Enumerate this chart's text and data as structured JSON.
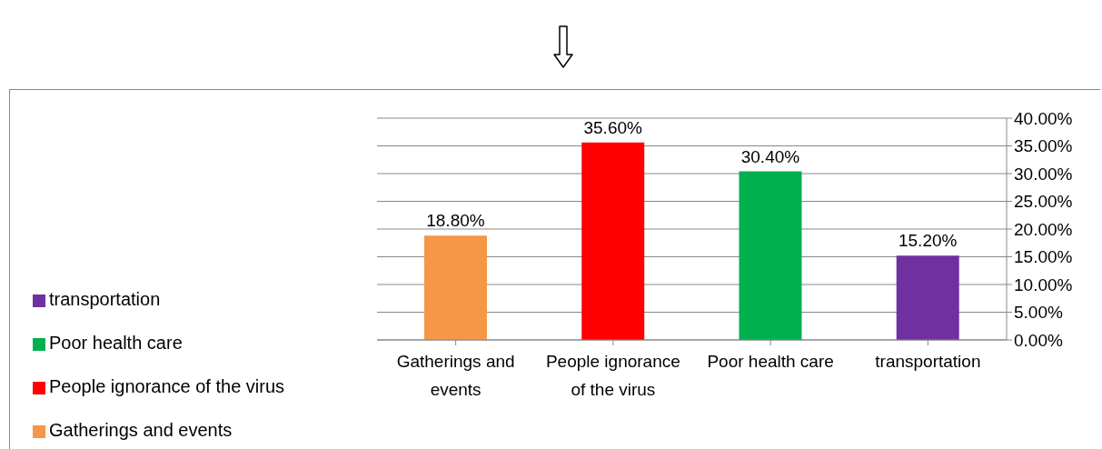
{
  "chart_data": {
    "type": "bar",
    "categories": [
      "Gatherings and events",
      "People ignorance of the virus",
      "Poor health care",
      "transportation"
    ],
    "stacked": true,
    "series": [
      {
        "name": "transportation",
        "color": "#7030a0",
        "values": [
          null,
          null,
          null,
          15.2
        ],
        "value_labels": [
          null,
          null,
          null,
          "15.20%"
        ]
      },
      {
        "name": "Poor health care",
        "color": "#00b050",
        "values": [
          null,
          null,
          30.4,
          null
        ],
        "value_labels": [
          null,
          null,
          "30.40%",
          null
        ]
      },
      {
        "name": "People ignorance of the virus",
        "color": "#ff0000",
        "values": [
          null,
          35.6,
          null,
          null
        ],
        "value_labels": [
          null,
          "35.60%",
          null,
          null
        ]
      },
      {
        "name": "Gatherings and events",
        "color": "#f79646",
        "values": [
          18.8,
          null,
          null,
          null
        ],
        "value_labels": [
          "18.80%",
          null,
          null,
          null
        ]
      }
    ],
    "ylim": [
      0,
      40
    ],
    "yticks": [
      {
        "value": 0,
        "label": "0.00%"
      },
      {
        "value": 5,
        "label": "5.00%"
      },
      {
        "value": 10,
        "label": "10.00%"
      },
      {
        "value": 15,
        "label": "15.00%"
      },
      {
        "value": 20,
        "label": "20.00%"
      },
      {
        "value": 25,
        "label": "25.00%"
      },
      {
        "value": 30,
        "label": "30.00%"
      },
      {
        "value": 35,
        "label": "35.00%"
      },
      {
        "value": 40,
        "label": "40.00%"
      }
    ],
    "grid": "y",
    "legend": "left"
  }
}
